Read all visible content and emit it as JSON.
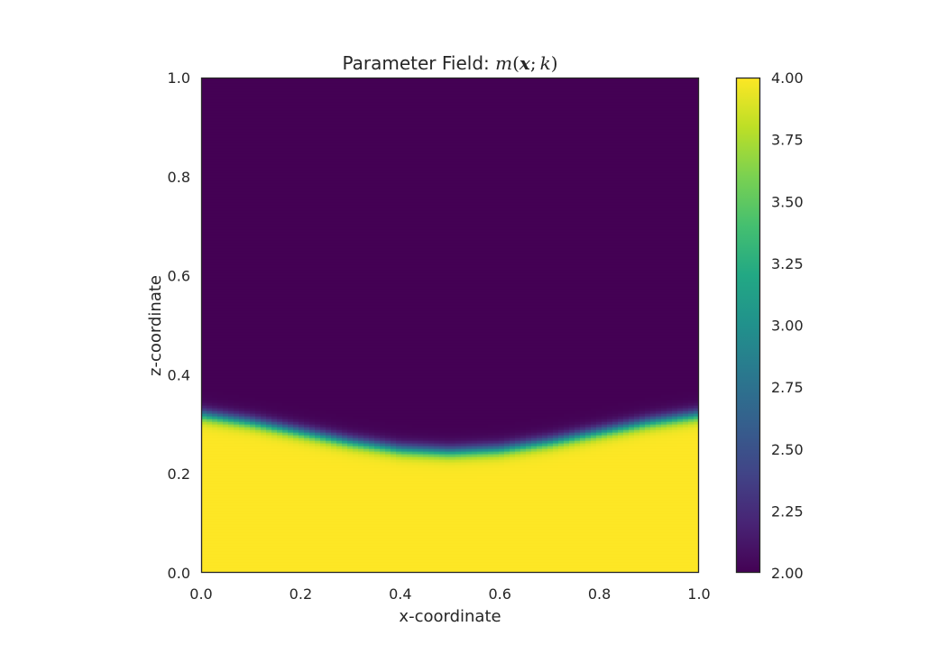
{
  "chart_data": {
    "type": "heatmap",
    "title": {
      "prefix": "Parameter Field: ",
      "math_m": "m",
      "math_open": "(",
      "math_x": "x",
      "math_sep": ";",
      "math_k": "k",
      "math_close": ")"
    },
    "xlabel": "x-coordinate",
    "ylabel": "z-coordinate",
    "xlim": [
      0.0,
      1.0
    ],
    "ylim": [
      0.0,
      1.0
    ],
    "x_ticks": [
      "0.0",
      "0.2",
      "0.4",
      "0.6",
      "0.8",
      "1.0"
    ],
    "y_ticks": [
      "0.0",
      "0.2",
      "0.4",
      "0.6",
      "0.8",
      "1.0"
    ],
    "colorbar": {
      "colormap": "viridis",
      "range": [
        2.0,
        4.0
      ],
      "ticks": [
        "2.00",
        "2.25",
        "2.50",
        "2.75",
        "3.00",
        "3.25",
        "3.50",
        "3.75",
        "4.00"
      ]
    },
    "field": {
      "description": "two-layer field: m = 4.00 below interface, m = 2.00 above interface",
      "lower_value": 4.0,
      "upper_value": 2.0,
      "interface_z": [
        {
          "x": 0.0,
          "z": 0.32
        },
        {
          "x": 0.1,
          "z": 0.305
        },
        {
          "x": 0.2,
          "z": 0.285
        },
        {
          "x": 0.3,
          "z": 0.265
        },
        {
          "x": 0.4,
          "z": 0.25
        },
        {
          "x": 0.5,
          "z": 0.245
        },
        {
          "x": 0.6,
          "z": 0.25
        },
        {
          "x": 0.7,
          "z": 0.265
        },
        {
          "x": 0.8,
          "z": 0.285
        },
        {
          "x": 0.9,
          "z": 0.305
        },
        {
          "x": 1.0,
          "z": 0.32
        }
      ],
      "transition_width": 0.03,
      "grid_on": false
    },
    "colors": {
      "viridis_low": "#440154",
      "viridis_high": "#fde725",
      "axis_frame": "#262626",
      "background": "#ffffff"
    }
  }
}
